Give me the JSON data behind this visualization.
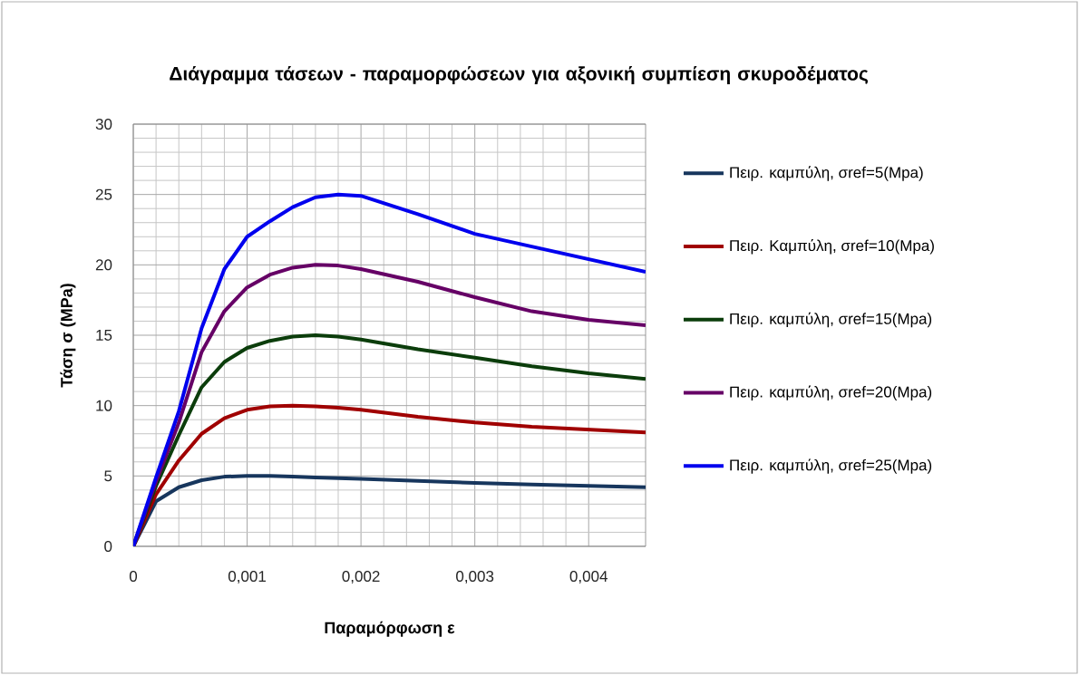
{
  "chart_data": {
    "type": "line",
    "title": "Διάγραμμα τάσεων - παραμορφώσεων για αξονική συμπίεση σκυροδέματος",
    "xlabel": "Παραμόρφωση ε",
    "ylabel": "Τάση σ (MPa)",
    "x": [
      0,
      0.0002,
      0.0004,
      0.0006,
      0.0008,
      0.001,
      0.0012,
      0.0014,
      0.0016,
      0.0018,
      0.002,
      0.0025,
      0.003,
      0.0035,
      0.004,
      0.0045
    ],
    "series": [
      {
        "name": "Πειρ. καμπύλη, σref=5(Mpa)",
        "color": "#17365d",
        "values": [
          0,
          3.2,
          4.2,
          4.7,
          4.95,
          5.0,
          5.0,
          4.95,
          4.9,
          4.85,
          4.8,
          4.65,
          4.5,
          4.4,
          4.3,
          4.2
        ]
      },
      {
        "name": "Πειρ. Καμπύλη, σref=10(Mpa)",
        "color": "#a00000",
        "values": [
          0,
          3.7,
          6.1,
          8.0,
          9.1,
          9.7,
          9.95,
          10.0,
          9.95,
          9.85,
          9.7,
          9.2,
          8.8,
          8.5,
          8.3,
          8.1
        ]
      },
      {
        "name": "Πειρ. καμπύλη, σref=15(Mpa)",
        "color": "#0b3d0b",
        "values": [
          0,
          4.3,
          7.9,
          11.3,
          13.1,
          14.1,
          14.6,
          14.9,
          15.0,
          14.9,
          14.7,
          14.0,
          13.4,
          12.8,
          12.3,
          11.9
        ]
      },
      {
        "name": "Πειρ. καμπύλη, σref=20(Mpa)",
        "color": "#660066",
        "values": [
          0,
          4.6,
          8.8,
          13.8,
          16.7,
          18.4,
          19.3,
          19.8,
          20.0,
          19.95,
          19.7,
          18.8,
          17.7,
          16.7,
          16.1,
          15.7
        ]
      },
      {
        "name": "Πειρ. καμπύλη, σref=25(Mpa)",
        "color": "#0000ee",
        "values": [
          0,
          4.9,
          9.6,
          15.5,
          19.7,
          22.0,
          23.1,
          24.1,
          24.8,
          25.0,
          24.9,
          23.6,
          22.2,
          21.3,
          20.4,
          19.5
        ]
      }
    ],
    "xlim": [
      0,
      0.0045
    ],
    "ylim": [
      0,
      30
    ],
    "xticks": [
      0,
      {
        "value": 0.001,
        "label": "0,001"
      },
      {
        "value": 0.002,
        "label": "0,002"
      },
      {
        "value": 0.003,
        "label": "0,003"
      },
      {
        "value": 0.004,
        "label": "0,004"
      }
    ],
    "yticks": [
      0,
      5,
      10,
      15,
      20,
      25,
      30
    ],
    "grid": true,
    "legend": "right",
    "marker": "none",
    "line_style": "solid"
  }
}
